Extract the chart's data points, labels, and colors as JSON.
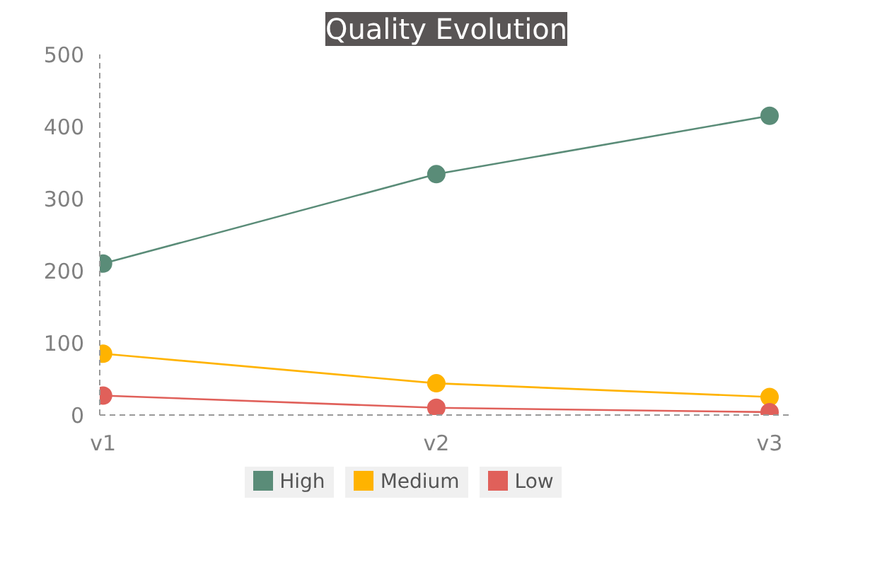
{
  "chart_data": {
    "type": "line",
    "title": "Quality Evolution",
    "categories": [
      "v1",
      "v2",
      "v3"
    ],
    "series": [
      {
        "name": "High",
        "color": "#5a8c78",
        "values": [
          210,
          334,
          415
        ]
      },
      {
        "name": "Medium",
        "color": "#ffb300",
        "values": [
          85,
          44,
          25
        ]
      },
      {
        "name": "Low",
        "color": "#e0605a",
        "values": [
          27,
          10,
          4
        ]
      }
    ],
    "ylim": [
      0,
      500
    ],
    "yticks": [
      0,
      100,
      200,
      300,
      400,
      500
    ],
    "grid": false,
    "legend": "bottom",
    "marker": "circle",
    "line_style": "solid"
  }
}
